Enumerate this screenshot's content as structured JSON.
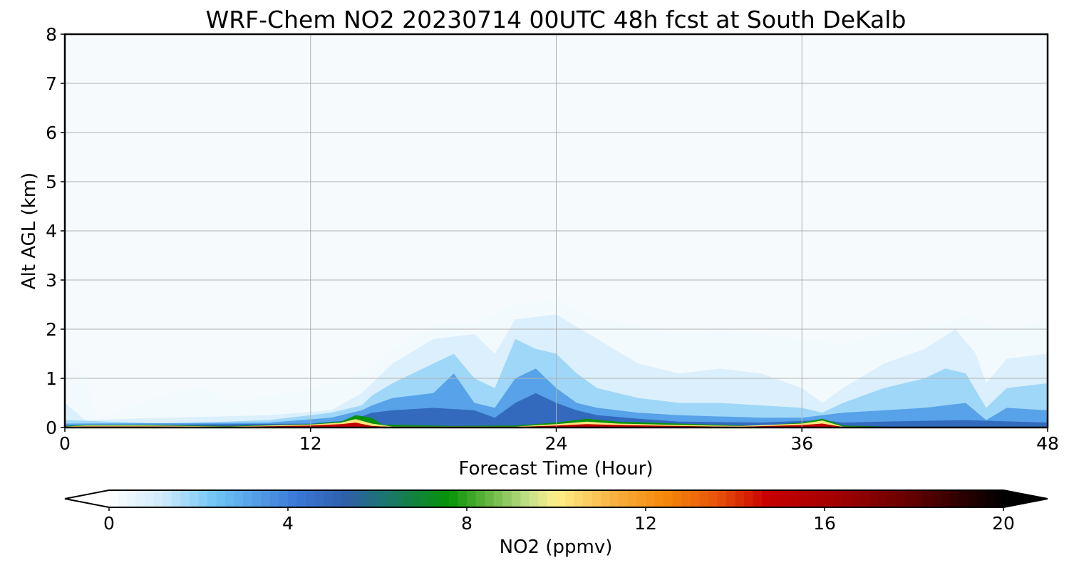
{
  "chart_data": {
    "type": "heatmap",
    "title": "WRF-Chem NO2  20230714 00UTC 48h fcst at South DeKalb",
    "xlabel": "Forecast Time (Hour)",
    "ylabel": "Alt AGL (km)",
    "xlim": [
      0,
      48
    ],
    "ylim": [
      0,
      8
    ],
    "xticks": [
      0,
      12,
      24,
      36,
      48
    ],
    "yticks": [
      0,
      1,
      2,
      3,
      4,
      5,
      6,
      7,
      8
    ],
    "grid": true,
    "colorbar": {
      "label": "NO2  (ppmv)",
      "range": [
        0,
        20
      ],
      "ticks": [
        0,
        4,
        8,
        12,
        16,
        20
      ],
      "extend": "both",
      "stops": [
        {
          "v": 0,
          "c": "#ffffff"
        },
        {
          "v": 1.2,
          "c": "#cfeafb"
        },
        {
          "v": 2.4,
          "c": "#6ec4f5"
        },
        {
          "v": 4.2,
          "c": "#3a78d8"
        },
        {
          "v": 5.3,
          "c": "#2e5fa8"
        },
        {
          "v": 6.3,
          "c": "#1a7866"
        },
        {
          "v": 7.6,
          "c": "#069306"
        },
        {
          "v": 8.4,
          "c": "#5cb33a"
        },
        {
          "v": 9.4,
          "c": "#c6e08a"
        },
        {
          "v": 10.0,
          "c": "#fff08a"
        },
        {
          "v": 11.3,
          "c": "#f8b040"
        },
        {
          "v": 12.4,
          "c": "#f48a0a"
        },
        {
          "v": 13.6,
          "c": "#e8540a"
        },
        {
          "v": 14.7,
          "c": "#c80000"
        },
        {
          "v": 16.2,
          "c": "#a40000"
        },
        {
          "v": 17.8,
          "c": "#6a0000"
        },
        {
          "v": 20.0,
          "c": "#000000"
        }
      ]
    },
    "contour_layers": [
      {
        "value": 0.3,
        "points": [
          [
            0,
            1.3
          ],
          [
            1,
            1.1
          ],
          [
            1.5,
            0.2
          ],
          [
            5,
            0.7
          ],
          [
            7,
            0.85
          ],
          [
            8,
            0.5
          ],
          [
            12,
            0.8
          ],
          [
            14.5,
            1.1
          ],
          [
            16,
            1.6
          ],
          [
            18,
            2.1
          ],
          [
            20,
            2.1
          ],
          [
            22,
            2.5
          ],
          [
            24,
            2.6
          ],
          [
            26,
            2.2
          ],
          [
            28,
            2.1
          ],
          [
            30,
            1.9
          ],
          [
            32,
            2.0
          ],
          [
            34,
            1.9
          ],
          [
            36,
            1.8
          ],
          [
            38,
            1.7
          ],
          [
            40,
            1.9
          ],
          [
            43,
            2.1
          ],
          [
            44,
            2.3
          ],
          [
            45,
            2.1
          ],
          [
            46,
            2.0
          ],
          [
            48,
            2.2
          ]
        ]
      },
      {
        "value": 0.9,
        "points": [
          [
            0,
            0.5
          ],
          [
            1,
            0.15
          ],
          [
            5,
            0.2
          ],
          [
            10,
            0.25
          ],
          [
            13,
            0.35
          ],
          [
            14.5,
            0.7
          ],
          [
            16,
            1.3
          ],
          [
            18,
            1.8
          ],
          [
            20,
            1.9
          ],
          [
            21,
            1.5
          ],
          [
            22,
            2.2
          ],
          [
            24,
            2.3
          ],
          [
            26,
            1.8
          ],
          [
            28,
            1.3
          ],
          [
            30,
            1.1
          ],
          [
            32,
            1.2
          ],
          [
            34,
            1.1
          ],
          [
            36,
            0.8
          ],
          [
            37,
            0.5
          ],
          [
            38,
            0.8
          ],
          [
            40,
            1.3
          ],
          [
            42,
            1.6
          ],
          [
            43.5,
            2.0
          ],
          [
            44.5,
            1.5
          ],
          [
            45,
            0.9
          ],
          [
            46,
            1.4
          ],
          [
            48,
            1.5
          ]
        ]
      },
      {
        "value": 1.8,
        "points": [
          [
            0,
            0.15
          ],
          [
            5,
            0.08
          ],
          [
            10,
            0.15
          ],
          [
            13,
            0.3
          ],
          [
            14.5,
            0.45
          ],
          [
            15,
            0.65
          ],
          [
            16,
            0.9
          ],
          [
            18,
            1.3
          ],
          [
            19,
            1.5
          ],
          [
            20,
            1.0
          ],
          [
            21,
            0.8
          ],
          [
            22,
            1.8
          ],
          [
            23,
            1.6
          ],
          [
            24,
            1.5
          ],
          [
            25,
            1.1
          ],
          [
            26,
            0.8
          ],
          [
            28,
            0.6
          ],
          [
            30,
            0.5
          ],
          [
            32,
            0.5
          ],
          [
            34,
            0.45
          ],
          [
            36,
            0.4
          ],
          [
            37,
            0.3
          ],
          [
            38,
            0.5
          ],
          [
            40,
            0.8
          ],
          [
            42,
            1.0
          ],
          [
            43,
            1.2
          ],
          [
            44,
            1.1
          ],
          [
            45,
            0.4
          ],
          [
            46,
            0.8
          ],
          [
            48,
            0.9
          ]
        ]
      },
      {
        "value": 3.2,
        "points": [
          [
            0,
            0.08
          ],
          [
            10,
            0.1
          ],
          [
            13,
            0.2
          ],
          [
            14.5,
            0.35
          ],
          [
            15,
            0.45
          ],
          [
            16,
            0.6
          ],
          [
            18,
            0.7
          ],
          [
            19,
            1.1
          ],
          [
            20,
            0.5
          ],
          [
            21,
            0.4
          ],
          [
            22,
            1.0
          ],
          [
            23,
            1.2
          ],
          [
            24,
            0.8
          ],
          [
            25,
            0.5
          ],
          [
            26,
            0.4
          ],
          [
            28,
            0.3
          ],
          [
            30,
            0.25
          ],
          [
            34,
            0.2
          ],
          [
            36,
            0.2
          ],
          [
            37,
            0.25
          ],
          [
            38,
            0.3
          ],
          [
            40,
            0.35
          ],
          [
            42,
            0.4
          ],
          [
            44,
            0.5
          ],
          [
            45,
            0.15
          ],
          [
            46,
            0.4
          ],
          [
            48,
            0.35
          ]
        ]
      },
      {
        "value": 4.8,
        "points": [
          [
            0,
            0.04
          ],
          [
            12,
            0.08
          ],
          [
            14,
            0.15
          ],
          [
            15,
            0.3
          ],
          [
            16,
            0.35
          ],
          [
            18,
            0.4
          ],
          [
            20,
            0.35
          ],
          [
            21,
            0.2
          ],
          [
            22,
            0.5
          ],
          [
            23,
            0.7
          ],
          [
            24,
            0.5
          ],
          [
            25,
            0.35
          ],
          [
            26,
            0.25
          ],
          [
            28,
            0.18
          ],
          [
            30,
            0.12
          ],
          [
            34,
            0.1
          ],
          [
            37,
            0.15
          ],
          [
            38,
            0.1
          ],
          [
            40,
            0.12
          ],
          [
            44,
            0.15
          ],
          [
            48,
            0.1
          ]
        ]
      },
      {
        "value": 7.5,
        "points": [
          [
            0,
            0.03
          ],
          [
            1,
            0.05
          ],
          [
            4,
            0.05
          ],
          [
            8,
            0.03
          ],
          [
            12,
            0.07
          ],
          [
            13.5,
            0.12
          ],
          [
            14.2,
            0.25
          ],
          [
            15,
            0.2
          ],
          [
            15.5,
            0.06
          ],
          [
            19,
            0.03
          ],
          [
            22,
            0.04
          ],
          [
            24,
            0.1
          ],
          [
            25.5,
            0.18
          ],
          [
            27,
            0.12
          ],
          [
            30,
            0.08
          ],
          [
            33,
            0.04
          ],
          [
            34,
            0.04
          ],
          [
            36,
            0.1
          ],
          [
            37,
            0.18
          ],
          [
            38,
            0.04
          ],
          [
            40,
            0.02
          ]
        ]
      },
      {
        "value": 10.2,
        "points": [
          [
            0,
            0.02
          ],
          [
            1,
            0.04
          ],
          [
            4,
            0.04
          ],
          [
            8,
            0.02
          ],
          [
            12,
            0.06
          ],
          [
            13.5,
            0.1
          ],
          [
            14.2,
            0.17
          ],
          [
            15,
            0.08
          ],
          [
            16,
            0.02
          ],
          [
            22,
            0.02
          ],
          [
            24,
            0.07
          ],
          [
            25.5,
            0.12
          ],
          [
            27,
            0.08
          ],
          [
            30,
            0.05
          ],
          [
            33,
            0.03
          ],
          [
            36,
            0.08
          ],
          [
            37,
            0.14
          ],
          [
            38,
            0.02
          ],
          [
            40,
            0.01
          ]
        ]
      },
      {
        "value": 14.9,
        "points": [
          [
            0,
            0.01
          ],
          [
            1,
            0.02
          ],
          [
            4,
            0.02
          ],
          [
            8,
            0.01
          ],
          [
            12,
            0.04
          ],
          [
            13.5,
            0.07
          ],
          [
            14.2,
            0.1
          ],
          [
            15,
            0.03
          ],
          [
            16,
            0.01
          ],
          [
            22,
            0.01
          ],
          [
            24,
            0.04
          ],
          [
            25.5,
            0.07
          ],
          [
            27,
            0.05
          ],
          [
            30,
            0.03
          ],
          [
            33,
            0.015
          ],
          [
            36,
            0.05
          ],
          [
            37,
            0.08
          ],
          [
            38,
            0.01
          ],
          [
            40,
            0.005
          ]
        ]
      }
    ]
  }
}
